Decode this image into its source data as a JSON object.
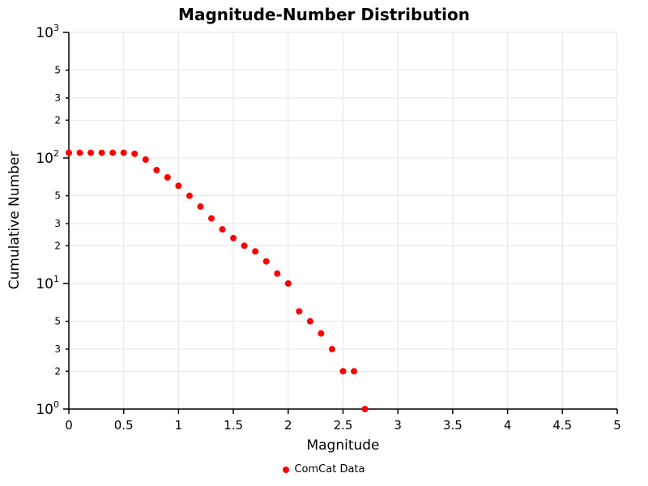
{
  "title": "Magnitude-Number Distribution",
  "xlabel": "Magnitude",
  "ylabel": "Cumulative Number",
  "legend": {
    "label": "ComCat Data",
    "marker_color": "#ff0000",
    "marker_shape": "circle"
  },
  "axes": {
    "xlim": [
      0,
      5
    ],
    "x_ticks": [
      0,
      0.5,
      1,
      1.5,
      2,
      2.5,
      3,
      3.5,
      4,
      4.5,
      5
    ],
    "x_tick_labels": [
      "0",
      "0.5",
      "1",
      "1.5",
      "2",
      "2.5",
      "3",
      "3.5",
      "4",
      "4.5",
      "5"
    ],
    "y_scale": "log",
    "ylim": [
      1,
      1000
    ],
    "y_major_exponents": [
      0,
      1,
      2,
      3
    ],
    "y_minor_mantissas": [
      2,
      3,
      5
    ],
    "grid": true,
    "grid_color": "#e6e6e6",
    "axis_color": "#000000"
  },
  "chart_data": {
    "type": "scatter",
    "title": "Magnitude-Number Distribution",
    "xlabel": "Magnitude",
    "ylabel": "Cumulative Number",
    "series_name": "ComCat Data",
    "point_color": "#ff0000",
    "x": [
      0.0,
      0.1,
      0.2,
      0.3,
      0.4,
      0.5,
      0.6,
      0.7,
      0.8,
      0.9,
      1.0,
      1.1,
      1.2,
      1.3,
      1.4,
      1.5,
      1.6,
      1.7,
      1.8,
      1.9,
      2.0,
      2.1,
      2.2,
      2.3,
      2.4,
      2.5,
      2.6,
      2.7
    ],
    "y": [
      110,
      110,
      110,
      110,
      110,
      110,
      108,
      97,
      80,
      70,
      60,
      50,
      41,
      33,
      27,
      23,
      20,
      18,
      15,
      12,
      10,
      6,
      5,
      4,
      3,
      2,
      2,
      1
    ],
    "xlim": [
      0,
      5
    ],
    "ylim": [
      1,
      1000
    ],
    "y_scale": "log",
    "legend_position": "bottom"
  }
}
